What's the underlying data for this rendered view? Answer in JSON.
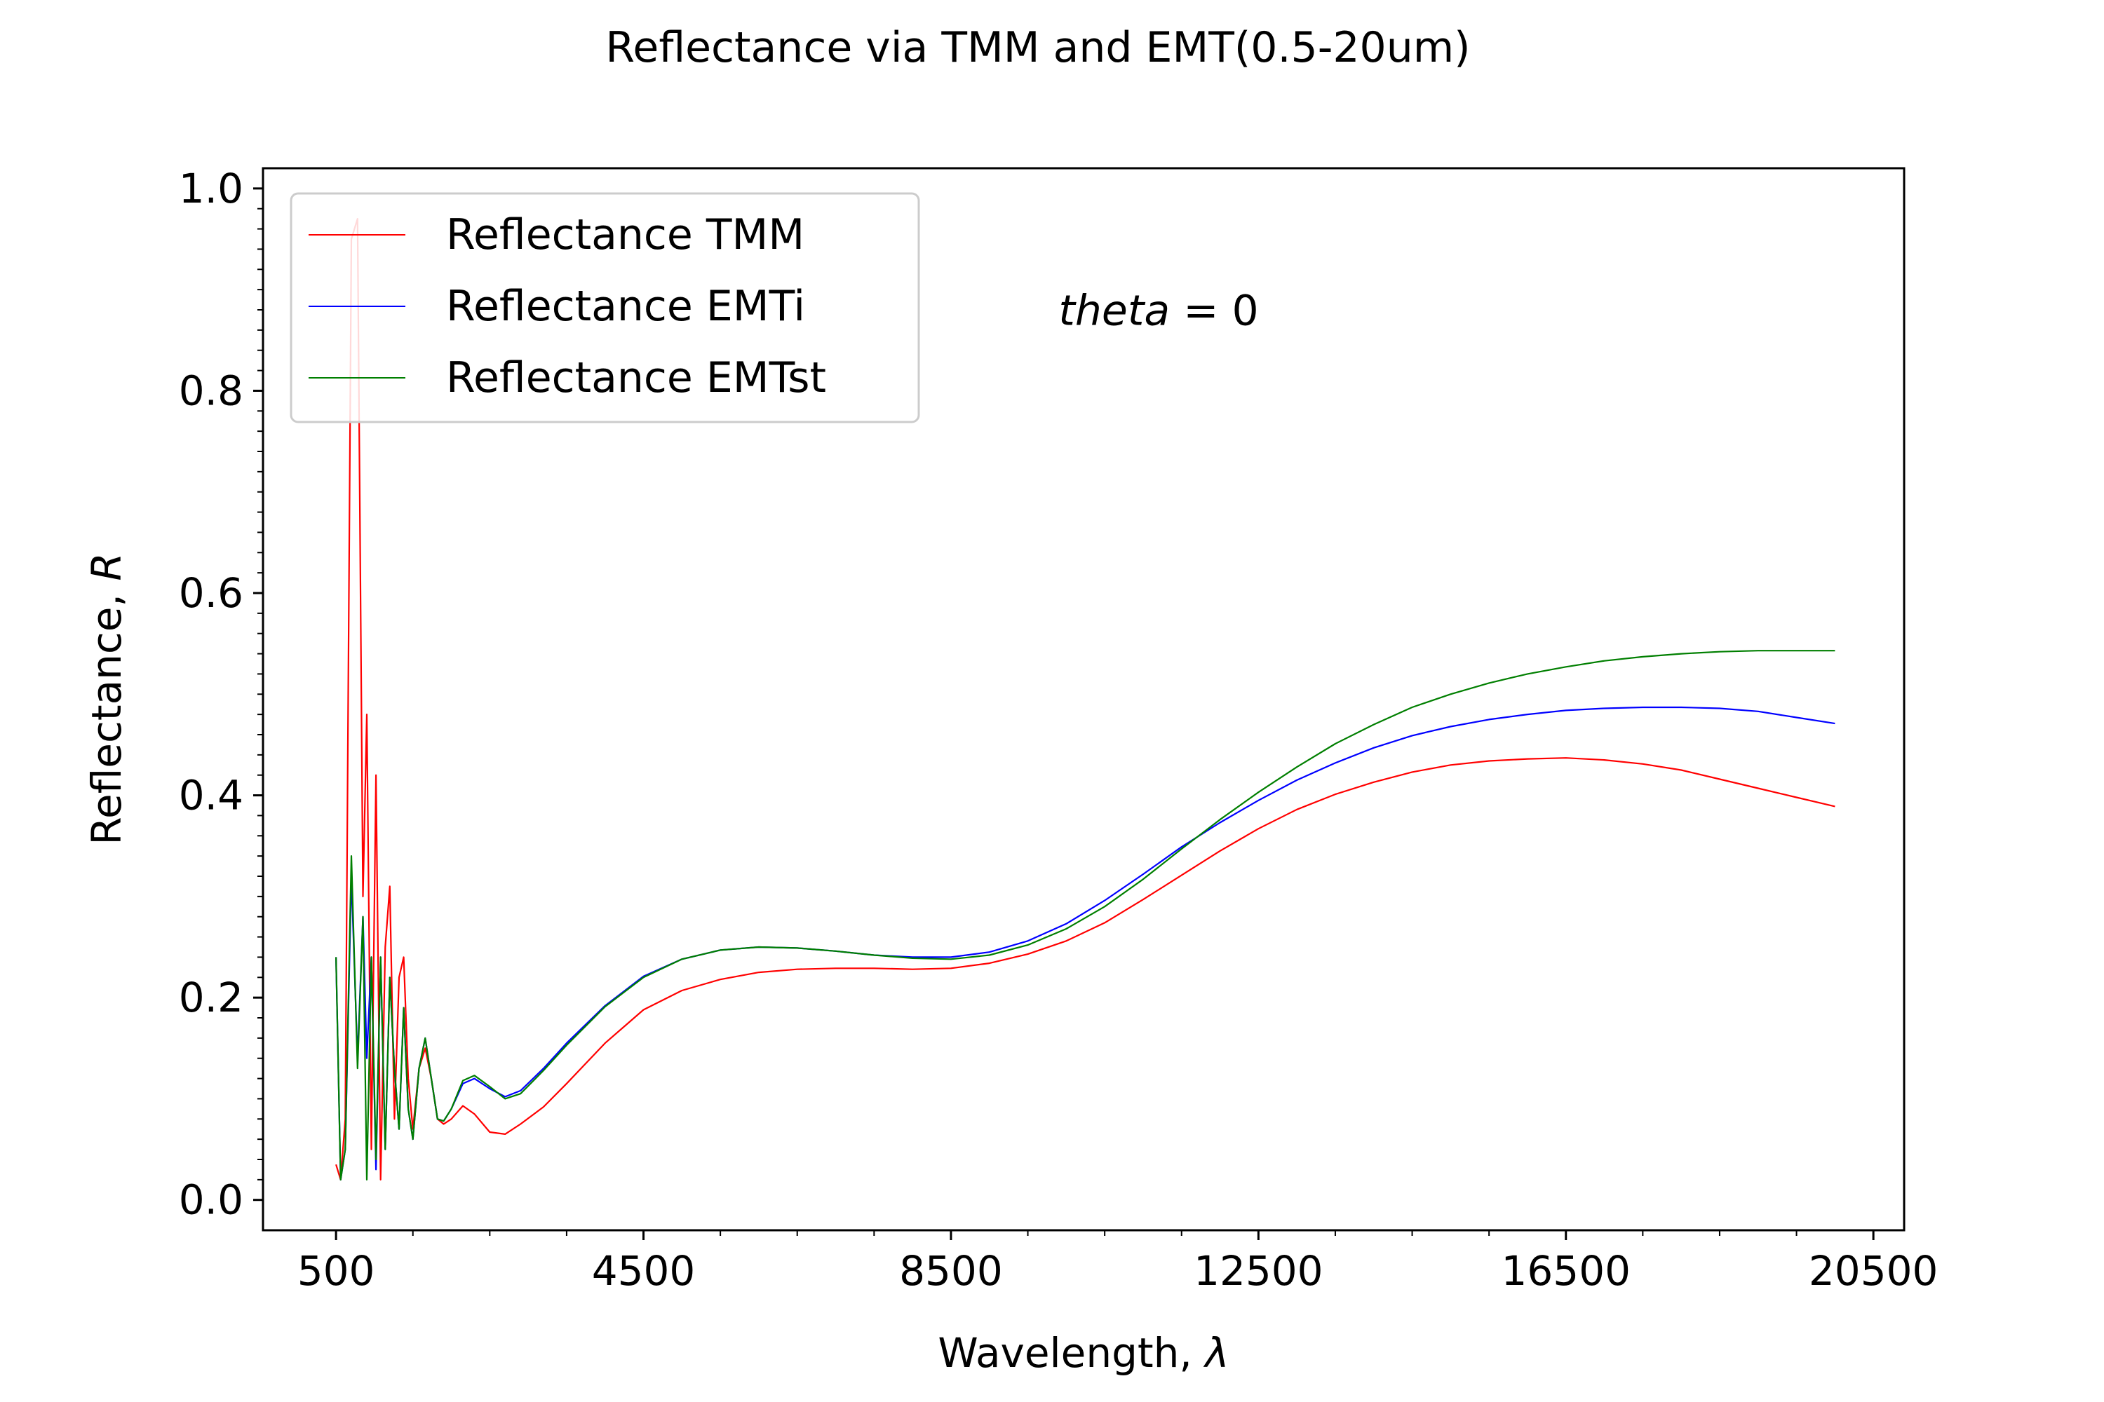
{
  "chart_data": {
    "type": "line",
    "title": "Reflectance via TMM and EMT(0.5-20um)",
    "xlabel": "Wavelength, ",
    "xlabel_symbol": "λ",
    "ylabel": "Reflectance, ",
    "ylabel_symbol": "R",
    "xlim": [
      -450,
      20900
    ],
    "ylim": [
      -0.03,
      1.02
    ],
    "xticks": [
      500,
      4500,
      8500,
      12500,
      16500,
      20500
    ],
    "xtick_labels": [
      "500",
      "4500",
      "8500",
      "12500",
      "16500",
      "20500"
    ],
    "yticks": [
      0.0,
      0.2,
      0.4,
      0.6,
      0.8,
      1.0
    ],
    "ytick_labels": [
      "0.0",
      "0.2",
      "0.4",
      "0.6",
      "0.8",
      "1.0"
    ],
    "annotation": {
      "italic": "theta",
      "rest": " = 0",
      "x": 9900,
      "y": 0.865
    },
    "legend_position": "upper-left",
    "series": [
      {
        "name": "Reflectance TMM",
        "color": "#ff0000",
        "x": [
          500,
          560,
          620,
          700,
          780,
          850,
          900,
          960,
          1020,
          1080,
          1140,
          1200,
          1260,
          1320,
          1380,
          1440,
          1500,
          1580,
          1660,
          1740,
          1820,
          1900,
          2000,
          2150,
          2300,
          2500,
          2700,
          2900,
          3200,
          3500,
          4000,
          4500,
          5000,
          5500,
          6000,
          6500,
          7000,
          7500,
          8000,
          8500,
          9000,
          9500,
          10000,
          10500,
          11000,
          11500,
          12000,
          12500,
          13000,
          13500,
          14000,
          14500,
          15000,
          15500,
          16000,
          16500,
          17000,
          17500,
          18000,
          18500,
          19000,
          19500,
          20000
        ],
        "y": [
          0.035,
          0.02,
          0.08,
          0.95,
          0.97,
          0.3,
          0.48,
          0.05,
          0.42,
          0.02,
          0.25,
          0.31,
          0.08,
          0.22,
          0.24,
          0.12,
          0.07,
          0.13,
          0.15,
          0.12,
          0.08,
          0.075,
          0.08,
          0.093,
          0.085,
          0.067,
          0.065,
          0.075,
          0.092,
          0.115,
          0.155,
          0.188,
          0.207,
          0.218,
          0.225,
          0.228,
          0.229,
          0.229,
          0.228,
          0.229,
          0.234,
          0.243,
          0.256,
          0.274,
          0.297,
          0.321,
          0.345,
          0.367,
          0.386,
          0.401,
          0.413,
          0.423,
          0.43,
          0.434,
          0.436,
          0.437,
          0.435,
          0.431,
          0.425,
          0.416,
          0.407,
          0.398,
          0.389
        ]
      },
      {
        "name": "Reflectance EMTi",
        "color": "#0000ff",
        "x": [
          500,
          560,
          620,
          700,
          780,
          850,
          900,
          960,
          1020,
          1080,
          1140,
          1200,
          1260,
          1320,
          1380,
          1440,
          1500,
          1580,
          1660,
          1740,
          1820,
          1900,
          2000,
          2150,
          2300,
          2500,
          2700,
          2900,
          3200,
          3500,
          4000,
          4500,
          5000,
          5500,
          6000,
          6500,
          7000,
          7500,
          8000,
          8500,
          9000,
          9500,
          10000,
          10500,
          11000,
          11500,
          12000,
          12500,
          13000,
          13500,
          14000,
          14500,
          15000,
          15500,
          16000,
          16500,
          17000,
          17500,
          18000,
          18500,
          19000,
          19500,
          20000
        ],
        "y": [
          0.24,
          0.02,
          0.05,
          0.32,
          0.14,
          0.28,
          0.14,
          0.24,
          0.03,
          0.24,
          0.05,
          0.22,
          0.13,
          0.07,
          0.19,
          0.09,
          0.06,
          0.13,
          0.16,
          0.12,
          0.08,
          0.078,
          0.09,
          0.115,
          0.12,
          0.11,
          0.102,
          0.108,
          0.13,
          0.155,
          0.192,
          0.221,
          0.238,
          0.247,
          0.25,
          0.249,
          0.246,
          0.242,
          0.24,
          0.24,
          0.245,
          0.256,
          0.273,
          0.296,
          0.322,
          0.349,
          0.373,
          0.395,
          0.415,
          0.432,
          0.447,
          0.459,
          0.468,
          0.475,
          0.48,
          0.484,
          0.486,
          0.487,
          0.487,
          0.486,
          0.483,
          0.477,
          0.471
        ]
      },
      {
        "name": "Reflectance EMTst",
        "color": "#007f00",
        "x": [
          500,
          560,
          620,
          700,
          780,
          850,
          900,
          960,
          1020,
          1080,
          1140,
          1200,
          1260,
          1320,
          1380,
          1440,
          1500,
          1580,
          1660,
          1740,
          1820,
          1900,
          2000,
          2150,
          2300,
          2500,
          2700,
          2900,
          3200,
          3500,
          4000,
          4500,
          5000,
          5500,
          6000,
          6500,
          7000,
          7500,
          8000,
          8500,
          9000,
          9500,
          10000,
          10500,
          11000,
          11500,
          12000,
          12500,
          13000,
          13500,
          14000,
          14500,
          15000,
          15500,
          16000,
          16500,
          17000,
          17500,
          18000,
          18500,
          19000,
          19500,
          20000
        ],
        "y": [
          0.24,
          0.02,
          0.05,
          0.34,
          0.13,
          0.28,
          0.02,
          0.24,
          0.04,
          0.24,
          0.05,
          0.22,
          0.13,
          0.07,
          0.19,
          0.09,
          0.06,
          0.13,
          0.16,
          0.12,
          0.08,
          0.078,
          0.09,
          0.118,
          0.123,
          0.112,
          0.1,
          0.105,
          0.128,
          0.153,
          0.191,
          0.22,
          0.238,
          0.247,
          0.25,
          0.249,
          0.246,
          0.242,
          0.239,
          0.238,
          0.242,
          0.252,
          0.268,
          0.29,
          0.317,
          0.347,
          0.376,
          0.403,
          0.428,
          0.451,
          0.47,
          0.487,
          0.5,
          0.511,
          0.52,
          0.527,
          0.533,
          0.537,
          0.54,
          0.542,
          0.543,
          0.543,
          0.543
        ]
      }
    ]
  }
}
